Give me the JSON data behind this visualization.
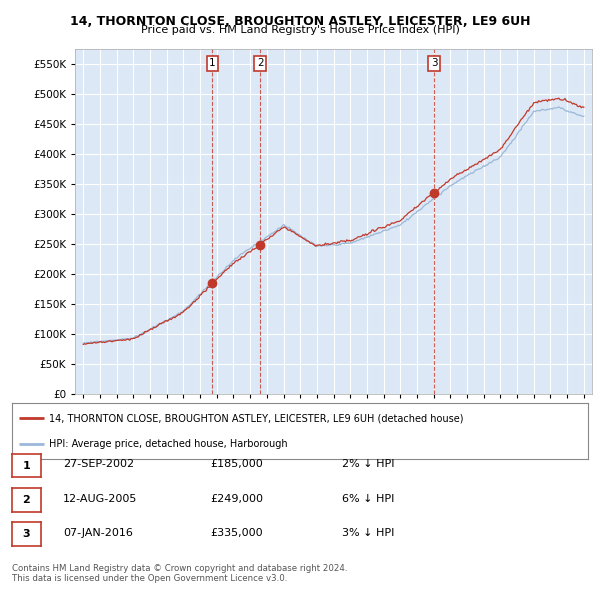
{
  "title": "14, THORNTON CLOSE, BROUGHTON ASTLEY, LEICESTER, LE9 6UH",
  "subtitle": "Price paid vs. HM Land Registry's House Price Index (HPI)",
  "legend_line1": "14, THORNTON CLOSE, BROUGHTON ASTLEY, LEICESTER, LE9 6UH (detached house)",
  "legend_line2": "HPI: Average price, detached house, Harborough",
  "sale_points": [
    {
      "label": "1",
      "date_num": 2002.74,
      "price": 185000
    },
    {
      "label": "2",
      "date_num": 2005.61,
      "price": 249000
    },
    {
      "label": "3",
      "date_num": 2016.02,
      "price": 335000
    }
  ],
  "table_rows": [
    {
      "num": "1",
      "date": "27-SEP-2002",
      "price": "£185,000",
      "hpi": "2% ↓ HPI"
    },
    {
      "num": "2",
      "date": "12-AUG-2005",
      "price": "£249,000",
      "hpi": "6% ↓ HPI"
    },
    {
      "num": "3",
      "date": "07-JAN-2016",
      "price": "£335,000",
      "hpi": "3% ↓ HPI"
    }
  ],
  "footer1": "Contains HM Land Registry data © Crown copyright and database right 2024.",
  "footer2": "This data is licensed under the Open Government Licence v3.0.",
  "hpi_color": "#9ab8d8",
  "sale_color": "#c0392b",
  "ylim": [
    0,
    575000
  ],
  "yticks": [
    0,
    50000,
    100000,
    150000,
    200000,
    250000,
    300000,
    350000,
    400000,
    450000,
    500000,
    550000
  ],
  "xmin": 1994.5,
  "xmax": 2025.5,
  "background_plot": "#dce8f5",
  "background_fig": "#ffffff",
  "grid_color": "#ffffff"
}
